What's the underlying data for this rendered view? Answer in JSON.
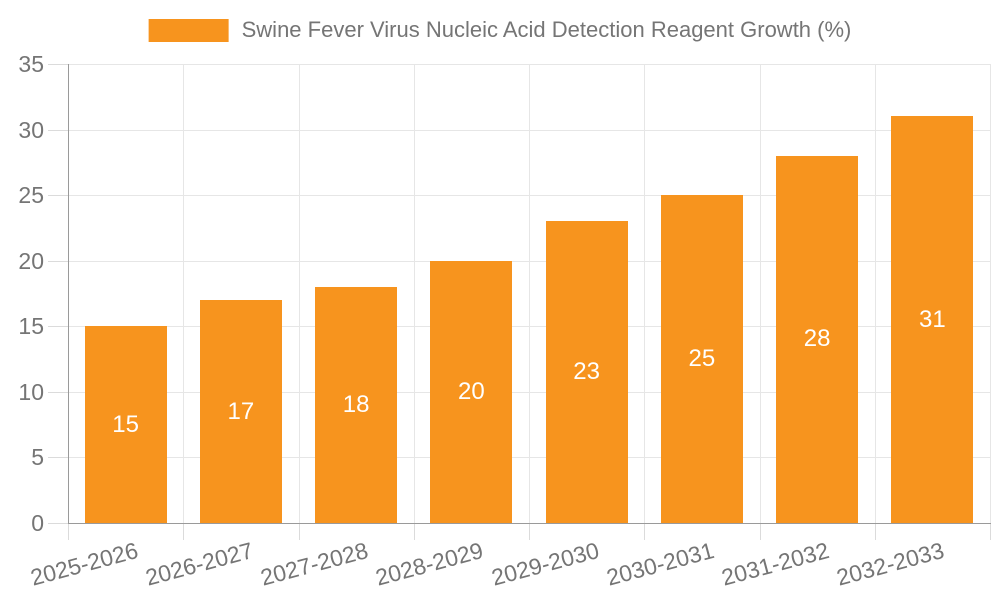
{
  "chart_data": {
    "type": "bar",
    "series_name": "Swine Fever Virus Nucleic Acid Detection Reagent Growth (%)",
    "categories": [
      "2025-2026",
      "2026-2027",
      "2027-2028",
      "2028-2029",
      "2029-2030",
      "2030-2031",
      "2031-2032",
      "2032-2033"
    ],
    "values": [
      15,
      17,
      18,
      20,
      23,
      25,
      28,
      31
    ],
    "value_labels_visible": true,
    "ylim": [
      0,
      35
    ],
    "yticks": [
      0,
      5,
      10,
      15,
      20,
      25,
      30,
      35
    ],
    "grid": true,
    "legend_position": "top-center",
    "x_tick_rotation_deg": -15
  },
  "colors": {
    "bar": "#F7941E",
    "axis_line": "#9A9A9A",
    "grid_line": "#E6E6E6",
    "tick_line": "#DBDBDB",
    "axis_text": "#757575",
    "legend_text": "#757575",
    "value_label_text": "#FFFFFF",
    "background": "#FFFFFF"
  }
}
